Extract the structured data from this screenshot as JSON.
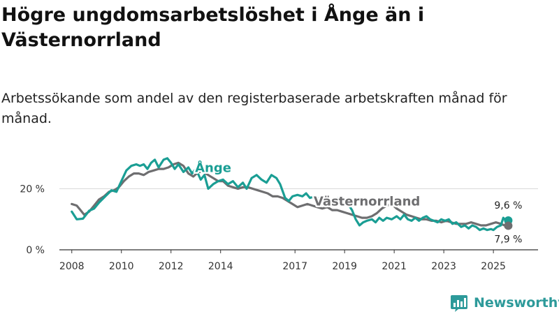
{
  "title": "Högre ungdomsarbetslöshet i Ånge än i Västernorrland",
  "subtitle": "Arbetssökande som andel av den registerbaserade arbetskraften månad för månad.",
  "brand": {
    "name": "Newsworthy",
    "icon": "newsworthy-logo-icon"
  },
  "colors": {
    "ange": "#1a9e94",
    "vasternorrland": "#6e6e70",
    "grid": "#d9d9d9",
    "axis": "#333333",
    "brand": "#2d9a9a"
  },
  "chart_data": {
    "type": "line",
    "title": "Högre ungdomsarbetslöshet i Ånge än i Västernorrland",
    "subtitle": "Arbetssökande som andel av den registerbaserade arbetskraften månad för månad.",
    "xlabel": "",
    "ylabel": "",
    "xlim": [
      2007.5,
      2026.8
    ],
    "ylim": [
      0,
      32
    ],
    "grid": true,
    "y_ticks": [
      {
        "value": 0,
        "label": "0 %"
      },
      {
        "value": 20,
        "label": "20 %"
      }
    ],
    "x_ticks": [
      {
        "value": 2008,
        "label": "2008"
      },
      {
        "value": 2010,
        "label": "2010"
      },
      {
        "value": 2012,
        "label": "2012"
      },
      {
        "value": 2014,
        "label": "2014"
      },
      {
        "value": 2017,
        "label": "2017"
      },
      {
        "value": 2019,
        "label": "2019"
      },
      {
        "value": 2021,
        "label": "2021"
      },
      {
        "value": 2023,
        "label": "2023"
      },
      {
        "value": 2025,
        "label": "2025"
      }
    ],
    "series": [
      {
        "name": "Ånge",
        "color": "#1a9e94",
        "label": "Ånge",
        "label_at": [
          2013.7,
          25.5
        ],
        "end_label": "9,6 %",
        "points": [
          [
            2008.0,
            12.5
          ],
          [
            2008.2,
            10.0
          ],
          [
            2008.45,
            10.2
          ],
          [
            2008.7,
            12.8
          ],
          [
            2008.9,
            13.5
          ],
          [
            2009.1,
            15.5
          ],
          [
            2009.35,
            17.5
          ],
          [
            2009.6,
            19.5
          ],
          [
            2009.8,
            19.0
          ],
          [
            2010.0,
            22.5
          ],
          [
            2010.2,
            26.0
          ],
          [
            2010.4,
            27.5
          ],
          [
            2010.6,
            28.0
          ],
          [
            2010.75,
            27.5
          ],
          [
            2010.9,
            28.0
          ],
          [
            2011.05,
            26.5
          ],
          [
            2011.2,
            28.5
          ],
          [
            2011.35,
            29.5
          ],
          [
            2011.5,
            27.0
          ],
          [
            2011.7,
            29.5
          ],
          [
            2011.85,
            30.0
          ],
          [
            2012.0,
            28.5
          ],
          [
            2012.15,
            26.5
          ],
          [
            2012.3,
            28.0
          ],
          [
            2012.5,
            25.5
          ],
          [
            2012.7,
            27.0
          ],
          [
            2012.85,
            25.0
          ],
          [
            2013.0,
            26.5
          ],
          [
            2013.2,
            23.0
          ],
          [
            2013.35,
            24.5
          ],
          [
            2013.5,
            20.0
          ],
          [
            2013.7,
            21.5
          ],
          [
            2013.9,
            22.5
          ],
          [
            2014.1,
            23.0
          ],
          [
            2014.3,
            21.5
          ],
          [
            2014.5,
            22.5
          ],
          [
            2014.7,
            20.5
          ],
          [
            2014.9,
            22.0
          ],
          [
            2015.05,
            20.0
          ],
          [
            2015.25,
            23.5
          ],
          [
            2015.45,
            24.5
          ],
          [
            2015.65,
            23.0
          ],
          [
            2015.85,
            22.0
          ],
          [
            2016.05,
            24.5
          ],
          [
            2016.25,
            23.5
          ],
          [
            2016.4,
            21.5
          ],
          [
            2016.6,
            17.0
          ],
          [
            2016.75,
            16.0
          ],
          [
            2016.9,
            17.5
          ],
          [
            2017.1,
            18.0
          ],
          [
            2017.3,
            17.5
          ],
          [
            2017.45,
            18.5
          ],
          [
            2017.6,
            17.0
          ],
          [
            2017.8,
            17.5
          ],
          [
            2018.0,
            16.5
          ],
          [
            2018.2,
            17.5
          ],
          [
            2018.4,
            16.0
          ],
          [
            2018.6,
            16.5
          ],
          [
            2018.75,
            17.0
          ],
          [
            2018.9,
            15.0
          ],
          [
            2019.1,
            15.5
          ],
          [
            2019.3,
            13.0
          ],
          [
            2019.45,
            10.0
          ],
          [
            2019.6,
            8.0
          ],
          [
            2019.75,
            9.0
          ],
          [
            2019.9,
            9.5
          ],
          [
            2020.1,
            10.0
          ],
          [
            2020.25,
            9.0
          ],
          [
            2020.4,
            10.5
          ],
          [
            2020.55,
            9.5
          ],
          [
            2020.7,
            10.5
          ],
          [
            2020.9,
            10.0
          ],
          [
            2021.1,
            11.0
          ],
          [
            2021.25,
            10.0
          ],
          [
            2021.4,
            11.5
          ],
          [
            2021.55,
            10.0
          ],
          [
            2021.7,
            9.5
          ],
          [
            2021.85,
            10.5
          ],
          [
            2022.0,
            9.5
          ],
          [
            2022.15,
            10.5
          ],
          [
            2022.3,
            11.0
          ],
          [
            2022.45,
            10.0
          ],
          [
            2022.6,
            9.5
          ],
          [
            2022.75,
            9.0
          ],
          [
            2022.9,
            10.0
          ],
          [
            2023.05,
            9.5
          ],
          [
            2023.2,
            10.0
          ],
          [
            2023.35,
            8.5
          ],
          [
            2023.5,
            9.0
          ],
          [
            2023.7,
            7.5
          ],
          [
            2023.85,
            8.0
          ],
          [
            2024.0,
            7.0
          ],
          [
            2024.15,
            8.0
          ],
          [
            2024.3,
            7.5
          ],
          [
            2024.45,
            6.5
          ],
          [
            2024.6,
            7.0
          ],
          [
            2024.75,
            6.5
          ],
          [
            2024.9,
            6.8
          ],
          [
            2025.0,
            6.5
          ],
          [
            2025.15,
            7.5
          ],
          [
            2025.3,
            8.0
          ],
          [
            2025.4,
            10.5
          ],
          [
            2025.5,
            9.5
          ],
          [
            2025.6,
            9.6
          ]
        ]
      },
      {
        "name": "Västernorrland",
        "color": "#6e6e70",
        "label": "Västernorrland",
        "label_at": [
          2019.9,
          14.5
        ],
        "end_label": "7,9 %",
        "points": [
          [
            2008.0,
            15.0
          ],
          [
            2008.2,
            14.5
          ],
          [
            2008.35,
            13.0
          ],
          [
            2008.5,
            11.5
          ],
          [
            2008.7,
            12.5
          ],
          [
            2008.9,
            14.5
          ],
          [
            2009.1,
            16.5
          ],
          [
            2009.3,
            17.5
          ],
          [
            2009.5,
            19.0
          ],
          [
            2009.7,
            19.5
          ],
          [
            2009.9,
            20.5
          ],
          [
            2010.1,
            22.5
          ],
          [
            2010.3,
            24.0
          ],
          [
            2010.5,
            25.0
          ],
          [
            2010.7,
            25.0
          ],
          [
            2010.9,
            24.5
          ],
          [
            2011.1,
            25.5
          ],
          [
            2011.3,
            26.0
          ],
          [
            2011.5,
            26.5
          ],
          [
            2011.7,
            26.5
          ],
          [
            2011.9,
            27.0
          ],
          [
            2012.1,
            28.0
          ],
          [
            2012.3,
            28.5
          ],
          [
            2012.5,
            27.5
          ],
          [
            2012.7,
            25.0
          ],
          [
            2012.9,
            24.0
          ],
          [
            2013.1,
            25.5
          ],
          [
            2013.3,
            25.5
          ],
          [
            2013.5,
            24.5
          ],
          [
            2013.7,
            23.5
          ],
          [
            2013.9,
            22.5
          ],
          [
            2014.1,
            22.5
          ],
          [
            2014.3,
            21.0
          ],
          [
            2014.5,
            20.5
          ],
          [
            2014.7,
            20.0
          ],
          [
            2014.9,
            20.5
          ],
          [
            2015.1,
            20.5
          ],
          [
            2015.3,
            20.0
          ],
          [
            2015.5,
            19.5
          ],
          [
            2015.7,
            19.0
          ],
          [
            2015.9,
            18.5
          ],
          [
            2016.1,
            17.5
          ],
          [
            2016.3,
            17.5
          ],
          [
            2016.5,
            17.0
          ],
          [
            2016.7,
            16.0
          ],
          [
            2016.9,
            15.0
          ],
          [
            2017.1,
            14.0
          ],
          [
            2017.3,
            14.5
          ],
          [
            2017.5,
            15.0
          ],
          [
            2017.7,
            14.5
          ],
          [
            2017.9,
            14.0
          ],
          [
            2018.1,
            13.5
          ],
          [
            2018.3,
            14.0
          ],
          [
            2018.5,
            13.0
          ],
          [
            2018.7,
            13.0
          ],
          [
            2018.9,
            12.5
          ],
          [
            2019.1,
            12.0
          ],
          [
            2019.3,
            11.5
          ],
          [
            2019.5,
            11.0
          ],
          [
            2019.7,
            10.5
          ],
          [
            2019.9,
            10.5
          ],
          [
            2020.1,
            11.0
          ],
          [
            2020.3,
            12.0
          ],
          [
            2020.5,
            13.5
          ],
          [
            2020.7,
            14.5
          ],
          [
            2020.9,
            15.0
          ],
          [
            2021.1,
            13.5
          ],
          [
            2021.3,
            12.5
          ],
          [
            2021.5,
            11.5
          ],
          [
            2021.7,
            11.0
          ],
          [
            2021.9,
            10.5
          ],
          [
            2022.1,
            10.0
          ],
          [
            2022.3,
            10.0
          ],
          [
            2022.5,
            9.5
          ],
          [
            2022.7,
            9.5
          ],
          [
            2022.9,
            9.0
          ],
          [
            2023.1,
            9.5
          ],
          [
            2023.3,
            9.0
          ],
          [
            2023.5,
            8.5
          ],
          [
            2023.7,
            8.5
          ],
          [
            2023.9,
            8.5
          ],
          [
            2024.1,
            9.0
          ],
          [
            2024.3,
            8.5
          ],
          [
            2024.5,
            8.0
          ],
          [
            2024.7,
            8.0
          ],
          [
            2024.9,
            8.5
          ],
          [
            2025.1,
            9.0
          ],
          [
            2025.3,
            8.5
          ],
          [
            2025.45,
            8.0
          ],
          [
            2025.6,
            7.9
          ]
        ]
      }
    ]
  }
}
